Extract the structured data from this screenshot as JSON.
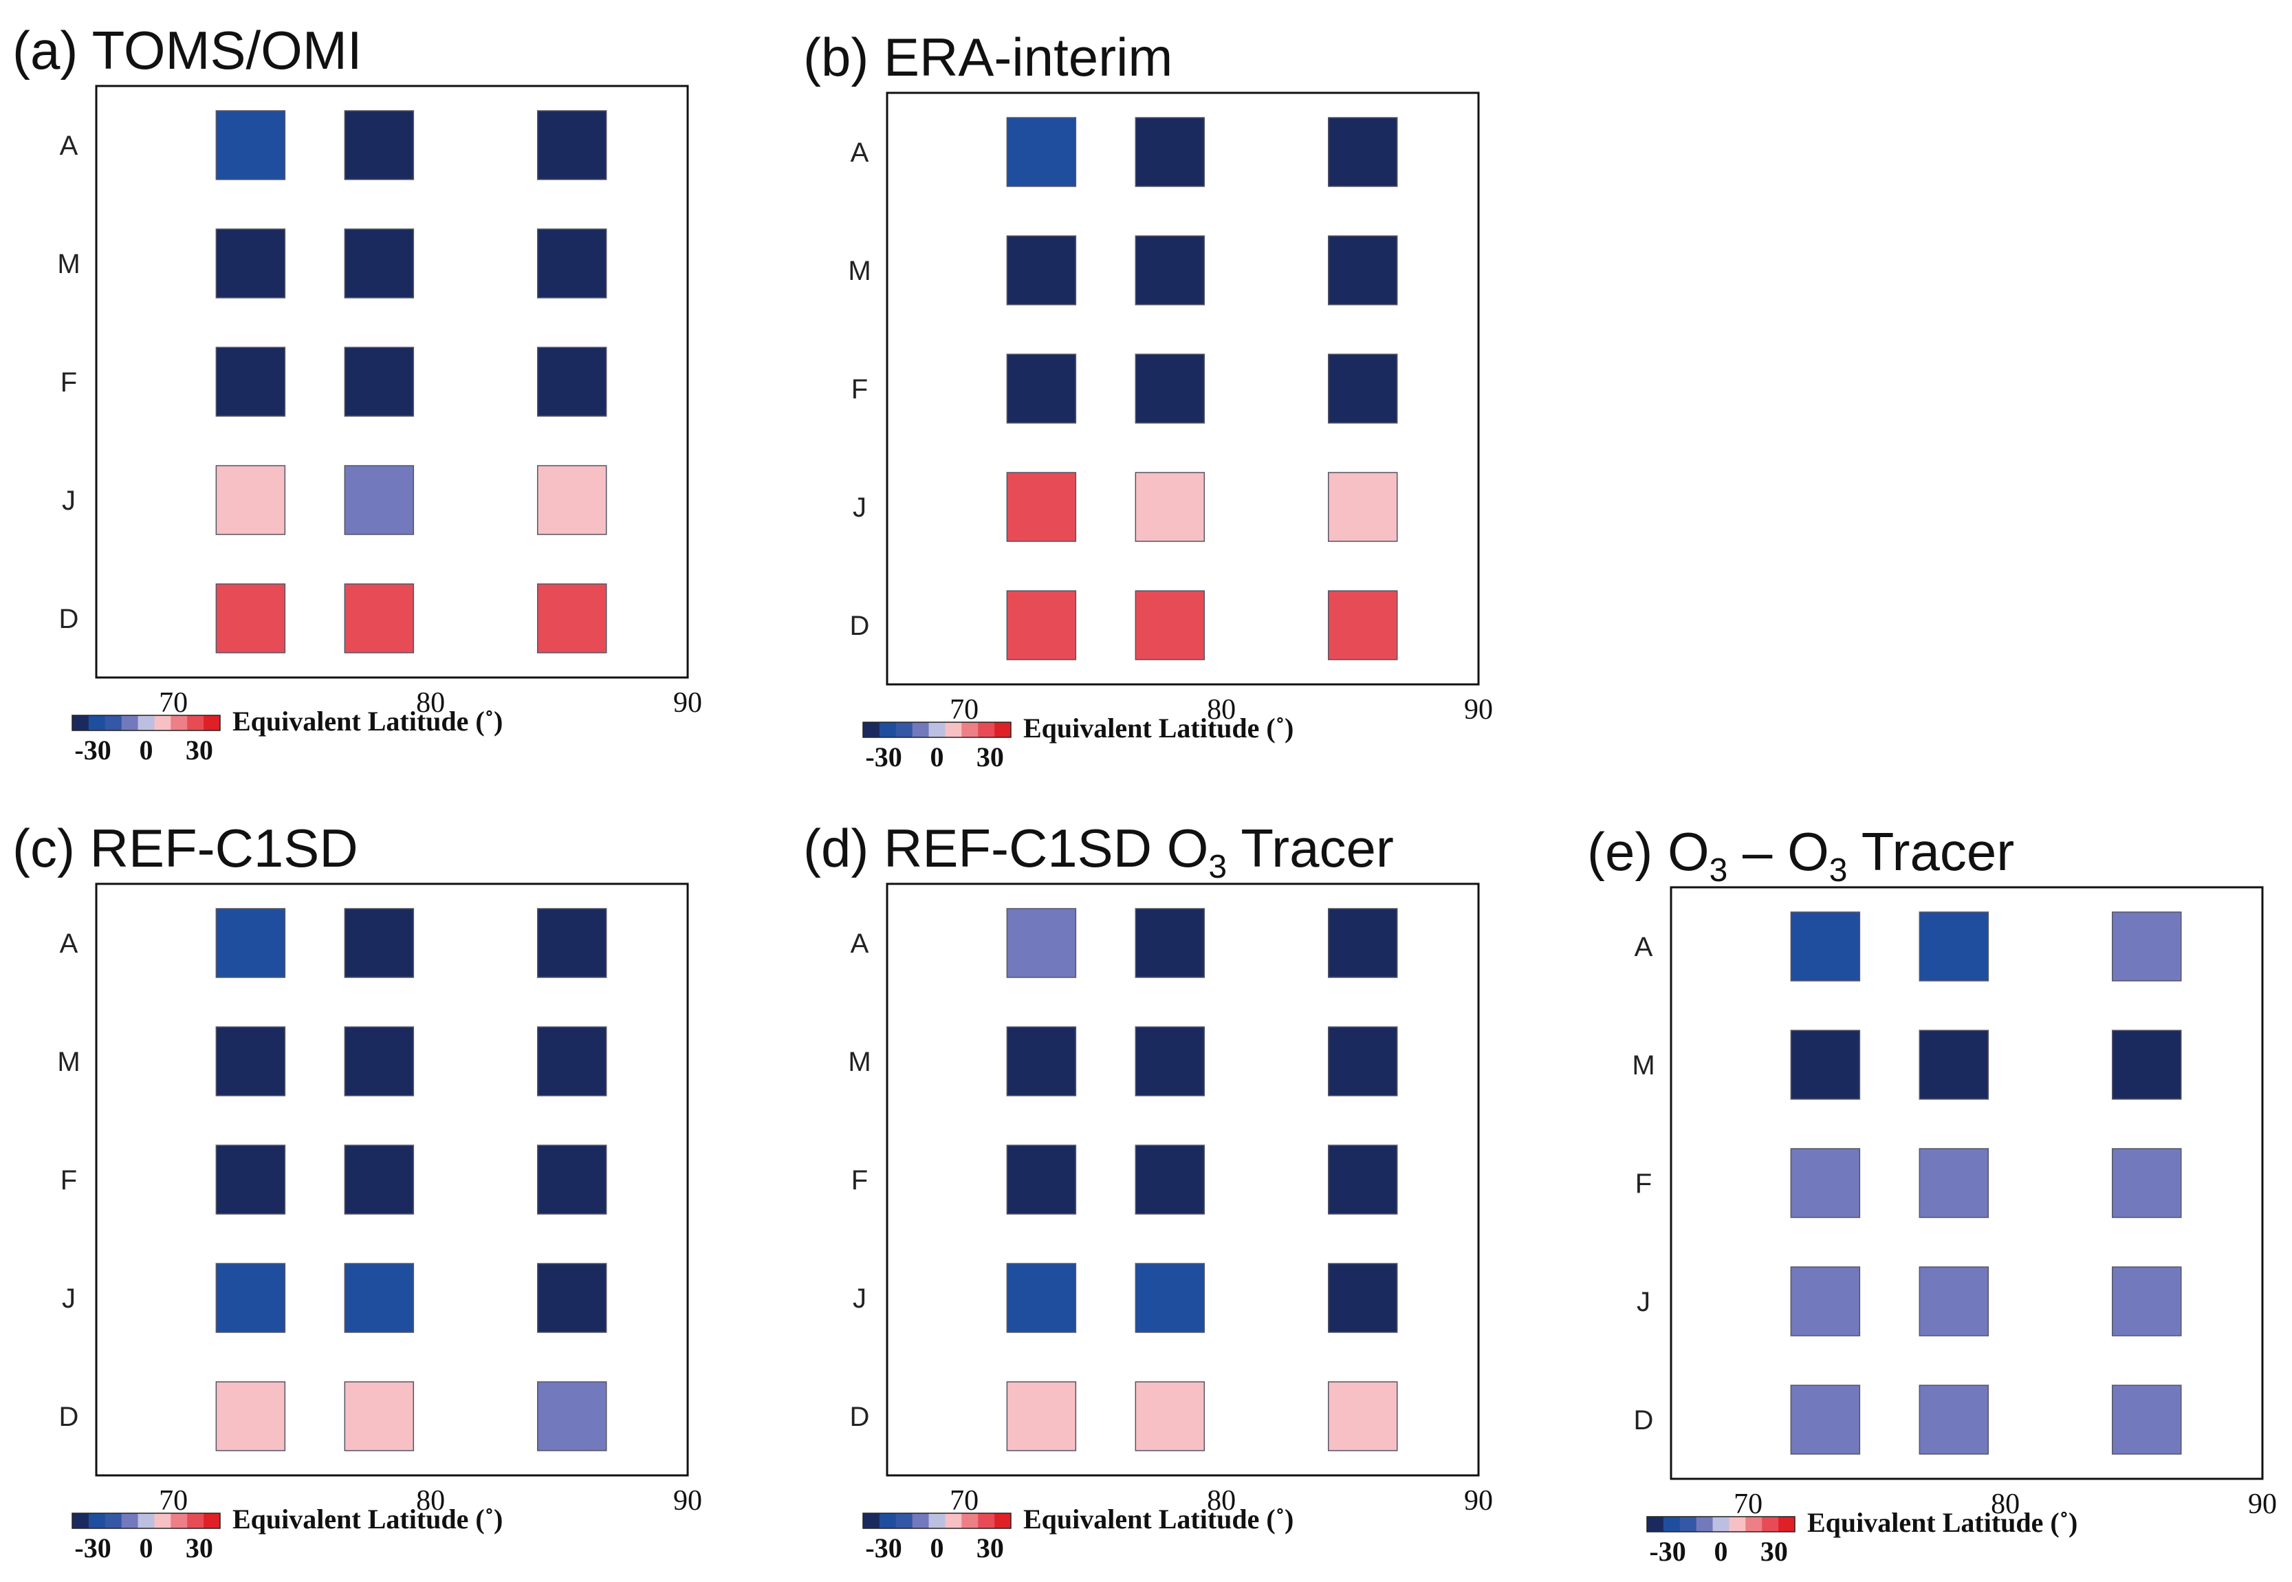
{
  "chart_data": [
    {
      "type": "heatmap",
      "label": "(a)",
      "title": "TOMS/OMI",
      "title_parts": [
        {
          "text": "TOMS/OMI"
        }
      ],
      "rows": [
        "A",
        "M",
        "F",
        "J",
        "D"
      ],
      "x_values": [
        73,
        78,
        85.5
      ],
      "xlim": [
        67,
        90
      ],
      "xticks": [
        "70",
        "80",
        "90"
      ],
      "xlabel": "Equivalent Latitude (˚)",
      "colorbar": {
        "range": [
          -30,
          30
        ],
        "tick_labels": [
          "-30",
          "0",
          "30"
        ]
      },
      "values": [
        [
          -18,
          -28,
          -35
        ],
        [
          -35,
          -35,
          -35
        ],
        [
          -28,
          -35,
          -35
        ],
        [
          5,
          -5,
          5
        ],
        [
          18,
          18,
          18
        ]
      ]
    },
    {
      "type": "heatmap",
      "label": "(b)",
      "title": "ERA-interim",
      "title_parts": [
        {
          "text": "ERA-interim"
        }
      ],
      "rows": [
        "A",
        "M",
        "F",
        "J",
        "D"
      ],
      "x_values": [
        73,
        78,
        85.5
      ],
      "xlim": [
        67,
        90
      ],
      "xticks": [
        "70",
        "80",
        "90"
      ],
      "xlabel": "Equivalent Latitude (˚)",
      "colorbar": {
        "range": [
          -30,
          30
        ],
        "tick_labels": [
          "-30",
          "0",
          "30"
        ]
      },
      "values": [
        [
          -18,
          -35,
          -35
        ],
        [
          -35,
          -35,
          -35
        ],
        [
          -28,
          -35,
          -28
        ],
        [
          18,
          5,
          5
        ],
        [
          18,
          18,
          18
        ]
      ]
    },
    {
      "type": "heatmap",
      "label": "(c)",
      "title": "REF-C1SD",
      "title_parts": [
        {
          "text": "REF-C1SD"
        }
      ],
      "rows": [
        "A",
        "M",
        "F",
        "J",
        "D"
      ],
      "x_values": [
        73,
        78,
        85.5
      ],
      "xlim": [
        67,
        90
      ],
      "xticks": [
        "70",
        "80",
        "90"
      ],
      "xlabel": "Equivalent Latitude (˚)",
      "colorbar": {
        "range": [
          -30,
          30
        ],
        "tick_labels": [
          "-30",
          "0",
          "30"
        ]
      },
      "values": [
        [
          -18,
          -35,
          -35
        ],
        [
          -35,
          -35,
          -35
        ],
        [
          -28,
          -35,
          -35
        ],
        [
          -18,
          -18,
          -24
        ],
        [
          5,
          5,
          -5
        ]
      ]
    },
    {
      "type": "heatmap",
      "label": "(d)",
      "title": "REF-C1SD O3 Tracer",
      "title_parts": [
        {
          "text": "REF-C1SD O"
        },
        {
          "text": "3",
          "sub": true
        },
        {
          "text": " Tracer"
        }
      ],
      "rows": [
        "A",
        "M",
        "F",
        "J",
        "D"
      ],
      "x_values": [
        73,
        78,
        85.5
      ],
      "xlim": [
        67,
        90
      ],
      "xticks": [
        "70",
        "80",
        "90"
      ],
      "xlabel": "Equivalent Latitude (˚)",
      "colorbar": {
        "range": [
          -30,
          30
        ],
        "tick_labels": [
          "-30",
          "0",
          "30"
        ]
      },
      "values": [
        [
          -5,
          -28,
          -35
        ],
        [
          -35,
          -35,
          -35
        ],
        [
          -28,
          -35,
          -35
        ],
        [
          -18,
          -18,
          -24
        ],
        [
          5,
          5,
          5
        ]
      ]
    },
    {
      "type": "heatmap",
      "label": "(e)",
      "title": "O3 – O3 Tracer",
      "title_parts": [
        {
          "text": "O"
        },
        {
          "text": "3",
          "sub": true
        },
        {
          "text": " – O"
        },
        {
          "text": "3",
          "sub": true
        },
        {
          "text": " Tracer"
        }
      ],
      "rows": [
        "A",
        "M",
        "F",
        "J",
        "D"
      ],
      "x_values": [
        73,
        78,
        85.5
      ],
      "xlim": [
        67,
        90
      ],
      "xticks": [
        "70",
        "80",
        "90"
      ],
      "xlabel": "Equivalent Latitude (˚)",
      "colorbar": {
        "range": [
          -30,
          30
        ],
        "tick_labels": [
          "-30",
          "0",
          "30"
        ]
      },
      "values": [
        [
          -18,
          -18,
          -5
        ],
        [
          -24,
          -24,
          -24
        ],
        [
          -5,
          -5,
          -5
        ],
        [
          -5,
          -5,
          -5
        ],
        [
          -5,
          -5,
          -5
        ]
      ]
    }
  ],
  "colormap": [
    "#1b2a5e",
    "#1f4e9e",
    "#3457a6",
    "#7279bd",
    "#bcbfe0",
    "#f6c0c4",
    "#ed7f86",
    "#e74c56",
    "#e02027"
  ]
}
